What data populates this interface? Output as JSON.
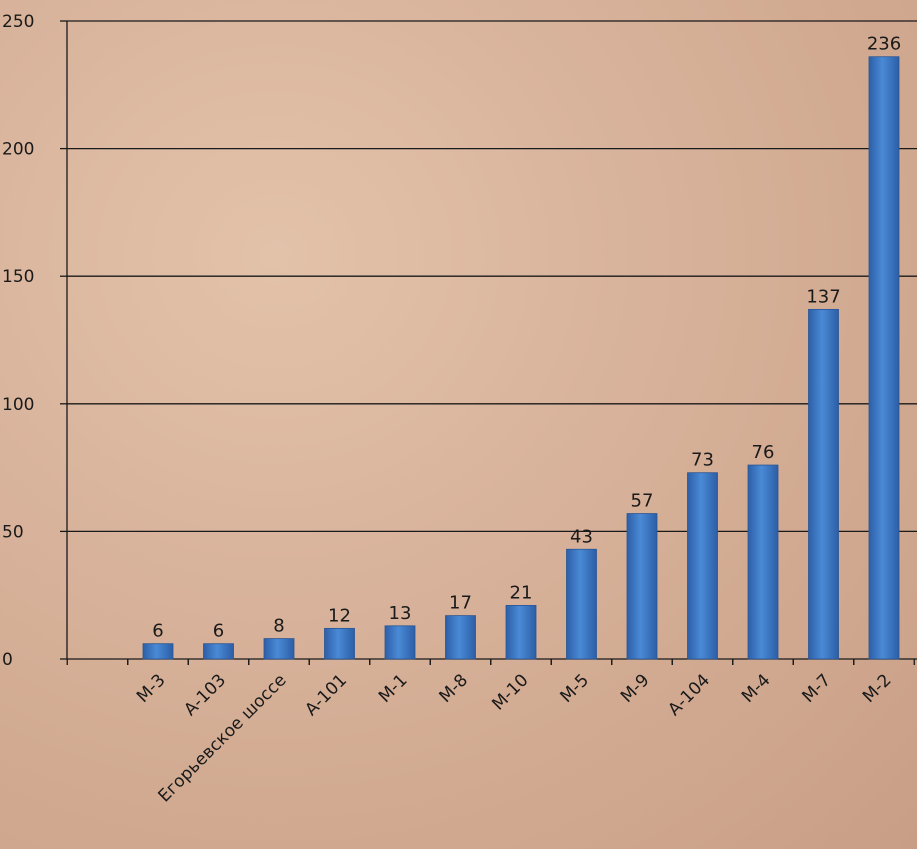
{
  "chart_data": {
    "type": "bar",
    "title": "",
    "xlabel": "",
    "ylabel": "",
    "ylim": [
      0,
      250
    ],
    "yticks": [
      0,
      50,
      100,
      150,
      200,
      250
    ],
    "grid": true,
    "legend": "none",
    "bar_color": "#3a78c6",
    "categories": [
      "М-3",
      "А-103",
      "Егорьевское шоссе",
      "А-101",
      "М-1",
      "М-8",
      "М-10",
      "М-5",
      "М-9",
      "А-104",
      "М-4",
      "М-7",
      "М-2"
    ],
    "values": [
      6,
      6,
      8,
      12,
      13,
      17,
      21,
      43,
      57,
      73,
      76,
      137,
      236
    ],
    "data_labels": [
      "6",
      "6",
      "8",
      "12",
      "13",
      "17",
      "21",
      "43",
      "57",
      "73",
      "76",
      "137",
      "236"
    ],
    "ytick_labels": [
      "0",
      "50",
      "100",
      "150",
      "200",
      "250"
    ]
  }
}
